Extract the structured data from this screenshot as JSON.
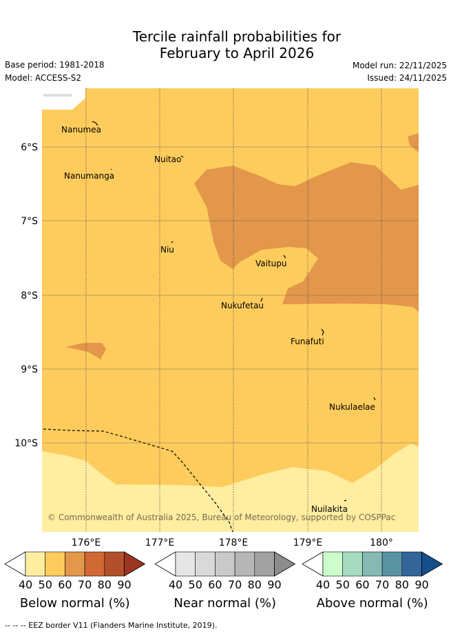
{
  "title_line1": "Tercile rainfall probabilities for",
  "title_line2": "February to April 2026",
  "base_period": "Base period: 1981-2018",
  "model": "Model: ACCESS-S2",
  "model_run": "Model run: 22/11/2025",
  "issued": "Issued: 24/11/2025",
  "copyright": "© Commonwealth of Australia 2025, Bureau of Meteorology, supported by COSPPac",
  "lon_labels": [
    "176°E",
    "177°E",
    "178°E",
    "179°E",
    "180°"
  ],
  "lat_labels": [
    "6°S",
    "7°S",
    "8°S",
    "9°S",
    "10°S"
  ],
  "places": [
    {
      "name": "Nanumea"
    },
    {
      "name": "Nuitao"
    },
    {
      "name": "Nanumanga"
    },
    {
      "name": "Niu"
    },
    {
      "name": "Vaitupu"
    },
    {
      "name": "Nukufetau"
    },
    {
      "name": "Funafuti"
    },
    {
      "name": "Nukulaelae"
    },
    {
      "name": "Nuilakita"
    }
  ],
  "colorbars": [
    {
      "title": "Below normal (%)",
      "ticks": [
        "40",
        "50",
        "60",
        "70",
        "80",
        "90"
      ],
      "colors": [
        "#ffeda0",
        "#fecc5c",
        "#e3974a",
        "#d06834",
        "#b3502b",
        "#9c3522"
      ]
    },
    {
      "title": "Near normal (%)",
      "ticks": [
        "40",
        "50",
        "60",
        "70",
        "80",
        "90"
      ],
      "colors": [
        "#e6e6e6",
        "#d9d9d9",
        "#c9c9c9",
        "#b6b6b6",
        "#a1a1a1",
        "#8c8c8c"
      ]
    },
    {
      "title": "Above normal (%)",
      "ticks": [
        "40",
        "50",
        "60",
        "70",
        "80",
        "90"
      ],
      "colors": [
        "#ccffcc",
        "#a5dbc0",
        "#84b9b4",
        "#5a93a2",
        "#33659b",
        "#154e8a"
      ]
    }
  ],
  "footer": "--  --  -- EEZ border V11 (Flanders Marine Institute, 2019).",
  "colors": {
    "below_40_50": "#ffeda0",
    "below_50_60": "#fecc5c",
    "below_60_70": "#e3974a"
  }
}
